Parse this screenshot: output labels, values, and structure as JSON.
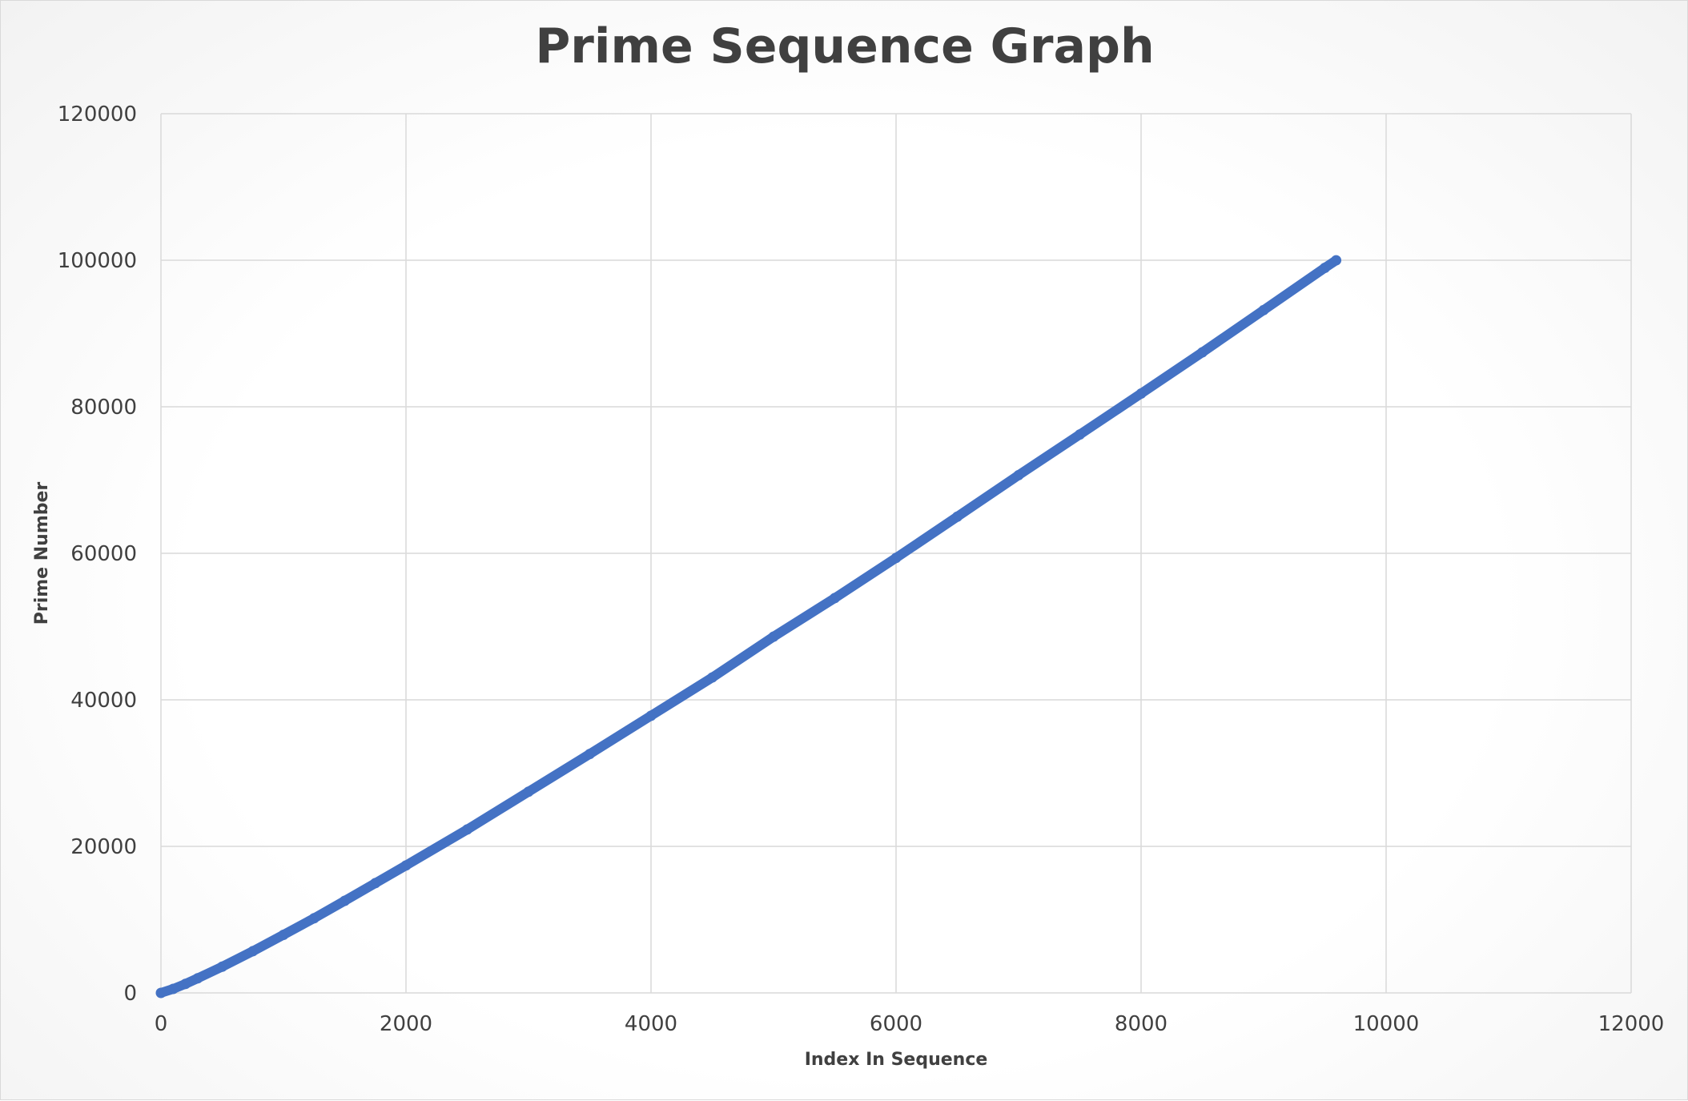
{
  "chart_data": {
    "type": "scatter",
    "title": "Prime Sequence Graph",
    "xlabel": "Index In Sequence",
    "ylabel": "Prime Number",
    "xlim": [
      0,
      12000
    ],
    "ylim": [
      0,
      120000
    ],
    "x_ticks": [
      0,
      2000,
      4000,
      6000,
      8000,
      10000,
      12000
    ],
    "y_ticks": [
      0,
      20000,
      40000,
      60000,
      80000,
      100000,
      120000
    ],
    "grid": true,
    "legend": "none",
    "series": [
      {
        "color": "#4472c4",
        "x": [
          0,
          100,
          200,
          300,
          500,
          750,
          1000,
          1250,
          1500,
          1750,
          2000,
          2500,
          3000,
          3500,
          4000,
          4500,
          5000,
          5500,
          6000,
          6500,
          7000,
          7500,
          8000,
          8500,
          9000,
          9500,
          9592
        ],
        "y": [
          2,
          547,
          1229,
          1993,
          3581,
          5693,
          7927,
          10193,
          12569,
          14983,
          17393,
          22307,
          27457,
          32609,
          37831,
          43051,
          48619,
          53891,
          59369,
          65003,
          70663,
          76213,
          81799,
          87433,
          93187,
          98963,
          99991
        ]
      }
    ]
  }
}
